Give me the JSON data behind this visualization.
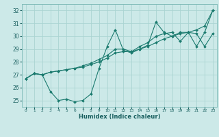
{
  "xlabel": "Humidex (Indice chaleur)",
  "ylabel": "",
  "bg_color": "#cce9e8",
  "grid_color": "#aad4d2",
  "line_color": "#1a7a6e",
  "xlim": [
    -0.5,
    23.5
  ],
  "ylim": [
    24.5,
    32.5
  ],
  "yticks": [
    25,
    26,
    27,
    28,
    29,
    30,
    31,
    32
  ],
  "xticks": [
    0,
    1,
    2,
    3,
    4,
    5,
    6,
    7,
    8,
    9,
    10,
    11,
    12,
    13,
    14,
    15,
    16,
    17,
    18,
    19,
    20,
    21,
    22,
    23
  ],
  "series": [
    [
      26.7,
      27.1,
      27.0,
      27.2,
      27.3,
      27.4,
      27.5,
      27.6,
      27.8,
      28.0,
      28.3,
      28.7,
      28.8,
      28.8,
      29.0,
      29.2,
      29.5,
      29.8,
      30.0,
      30.2,
      30.3,
      30.5,
      30.8,
      32.0
    ],
    [
      26.7,
      27.1,
      27.0,
      27.2,
      27.3,
      27.4,
      27.5,
      27.7,
      27.9,
      28.2,
      28.5,
      29.0,
      29.0,
      28.8,
      29.2,
      29.5,
      30.0,
      30.2,
      30.3,
      29.6,
      30.3,
      30.2,
      29.2,
      30.2
    ],
    [
      26.7,
      27.1,
      27.0,
      25.7,
      25.0,
      25.1,
      24.9,
      25.0,
      25.5,
      27.5,
      29.2,
      30.5,
      28.9,
      28.7,
      29.0,
      29.3,
      31.1,
      30.3,
      30.0,
      30.3,
      30.3,
      29.2,
      30.3,
      32.0
    ]
  ]
}
